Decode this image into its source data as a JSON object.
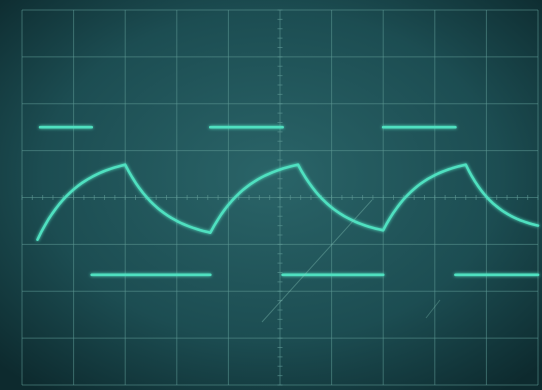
{
  "chart_data": {
    "type": "line",
    "title": "",
    "xlabel": "",
    "ylabel": "",
    "grid": true,
    "grid_divisions": {
      "x": 10,
      "y": 8
    },
    "series": [
      {
        "kind": "square",
        "x": [
          0.35,
          1.35,
          1.35,
          3.65,
          3.65,
          5.05,
          5.05,
          7.0,
          7.0,
          8.4,
          8.4,
          10.0
        ],
        "y": [
          5.5,
          5.5,
          2.35,
          2.35,
          5.5,
          5.5,
          2.35,
          2.35,
          5.5,
          5.5,
          2.35,
          2.35
        ],
        "color": "#4fe0c0"
      },
      {
        "kind": "exponential-triangle",
        "x": [
          0.3,
          2.0,
          3.65,
          5.35,
          7.0,
          8.6,
          10.0
        ],
        "y": [
          3.1,
          4.7,
          3.25,
          4.7,
          3.3,
          4.7,
          3.4
        ],
        "color": "#4fe0c0"
      }
    ],
    "colors": {
      "screen": "#1c4d52",
      "screen_dark": "#0d2a2e",
      "grid": "#5f9a96",
      "trace": "#4fe0c0",
      "trace_glow": "#2fb89a"
    }
  }
}
